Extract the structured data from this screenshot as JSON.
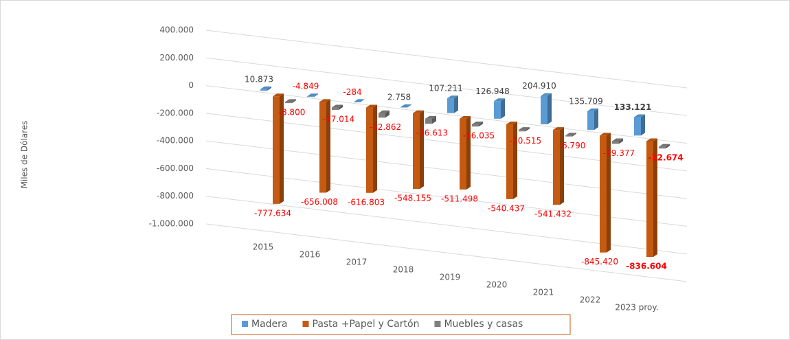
{
  "chart_data": {
    "type": "bar3d",
    "y_axis_label": "Miles de Dólares",
    "categories": [
      "2015",
      "2016",
      "2017",
      "2018",
      "2019",
      "2020",
      "2021",
      "2022",
      "2023 proy."
    ],
    "series": [
      {
        "name": "Madera",
        "color": "#5b9bd5",
        "values": [
          10873,
          -4849,
          -284,
          2758,
          107211,
          126948,
          204910,
          135709,
          133121
        ],
        "value_labels": [
          "10.873",
          "-4.849",
          "-284",
          "2.758",
          "107.211",
          "126.948",
          "204.910",
          "135.709",
          "133.121"
        ]
      },
      {
        "name": "Pasta +Papel y Cartón",
        "color": "#c55a11",
        "values": [
          -777634,
          -656008,
          -616803,
          -548155,
          -511498,
          -540437,
          -541432,
          -845420,
          -836604
        ],
        "value_labels": [
          "-777.634",
          "-656.008",
          "-616.803",
          "-548.155",
          "-511.498",
          "-540.437",
          "-541.432",
          "-845.420",
          "-836.604"
        ]
      },
      {
        "name": "Muebles y casas",
        "color": "#7f7f7f",
        "values": [
          -8800,
          -17014,
          -32862,
          -36613,
          -16035,
          -10515,
          -6790,
          -19377,
          -12674
        ],
        "value_labels": [
          "-8.800",
          "-17.014",
          "-32.862",
          "-36.613",
          "-16.035",
          "-10.515",
          "-6.790",
          "-19.377",
          "-12.674"
        ]
      }
    ],
    "ylim": [
      -1000000,
      400000
    ],
    "yticks": [
      {
        "value": 400000,
        "label": "400.000"
      },
      {
        "value": 200000,
        "label": "200.000"
      },
      0,
      {
        "value": -200000,
        "label": "-200.000"
      },
      {
        "value": -400000,
        "label": "-400.000"
      },
      {
        "value": -600000,
        "label": "-600.000"
      },
      {
        "value": -800000,
        "label": "-800.000"
      },
      {
        "value": -1000000,
        "label": "-1.000.000"
      }
    ],
    "grid": true,
    "legend": "bottom"
  }
}
